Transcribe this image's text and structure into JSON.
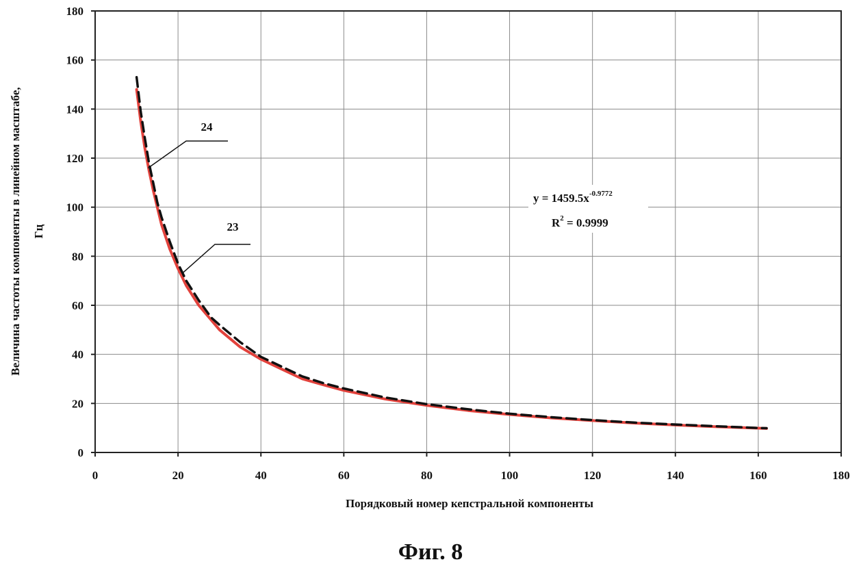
{
  "figure_caption": "Фиг. 8",
  "chart_data": {
    "type": "line",
    "xlabel": "Порядковый номер кепстральной компоненты",
    "ylabel_line1": "Величина частоты компоненты в линейном масштабе,",
    "ylabel_line2": "Гц",
    "xlim": [
      0,
      180
    ],
    "ylim": [
      0,
      180
    ],
    "x_ticks": [
      0,
      20,
      40,
      60,
      80,
      100,
      120,
      140,
      160,
      180
    ],
    "y_ticks": [
      0,
      20,
      40,
      60,
      80,
      100,
      120,
      140,
      160,
      180
    ],
    "grid": true,
    "series": [
      {
        "label_id": "23",
        "style": "solid",
        "color": "#e2423c",
        "x": [
          10,
          11,
          12,
          13,
          14,
          15,
          16,
          18,
          20,
          22,
          25,
          28,
          30,
          35,
          40,
          45,
          50,
          55,
          60,
          70,
          80,
          90,
          100,
          110,
          120,
          130,
          140,
          150,
          160,
          162
        ],
        "y": [
          148,
          135,
          124,
          115,
          107,
          100,
          93,
          83,
          75,
          68,
          60,
          54,
          50,
          43,
          38,
          34,
          30,
          27.6,
          25.3,
          21.8,
          19.2,
          17.1,
          15.5,
          14.1,
          13.0,
          12.0,
          11.2,
          10.5,
          9.9,
          9.8
        ]
      },
      {
        "label_id": "24",
        "style": "dashed",
        "color": "#111111",
        "x": [
          10,
          11,
          12,
          13,
          14,
          15,
          16,
          18,
          20,
          22,
          25,
          28,
          30,
          35,
          40,
          45,
          50,
          55,
          60,
          70,
          80,
          90,
          100,
          110,
          120,
          130,
          140,
          150,
          160,
          162
        ],
        "y": [
          153,
          139,
          128,
          118,
          110,
          102,
          96,
          86,
          77,
          70,
          62,
          55,
          52,
          45,
          39,
          35,
          31,
          28.3,
          26.1,
          22.4,
          19.7,
          17.6,
          15.8,
          14.4,
          13.2,
          12.2,
          11.4,
          10.7,
          10.0,
          9.9
        ]
      }
    ],
    "equation": {
      "prefix": "y = 1459.5x",
      "exponent": "-0.9772",
      "r2_prefix": "R",
      "r2_sup": "2",
      "r2_value": " = 0.9999"
    }
  }
}
